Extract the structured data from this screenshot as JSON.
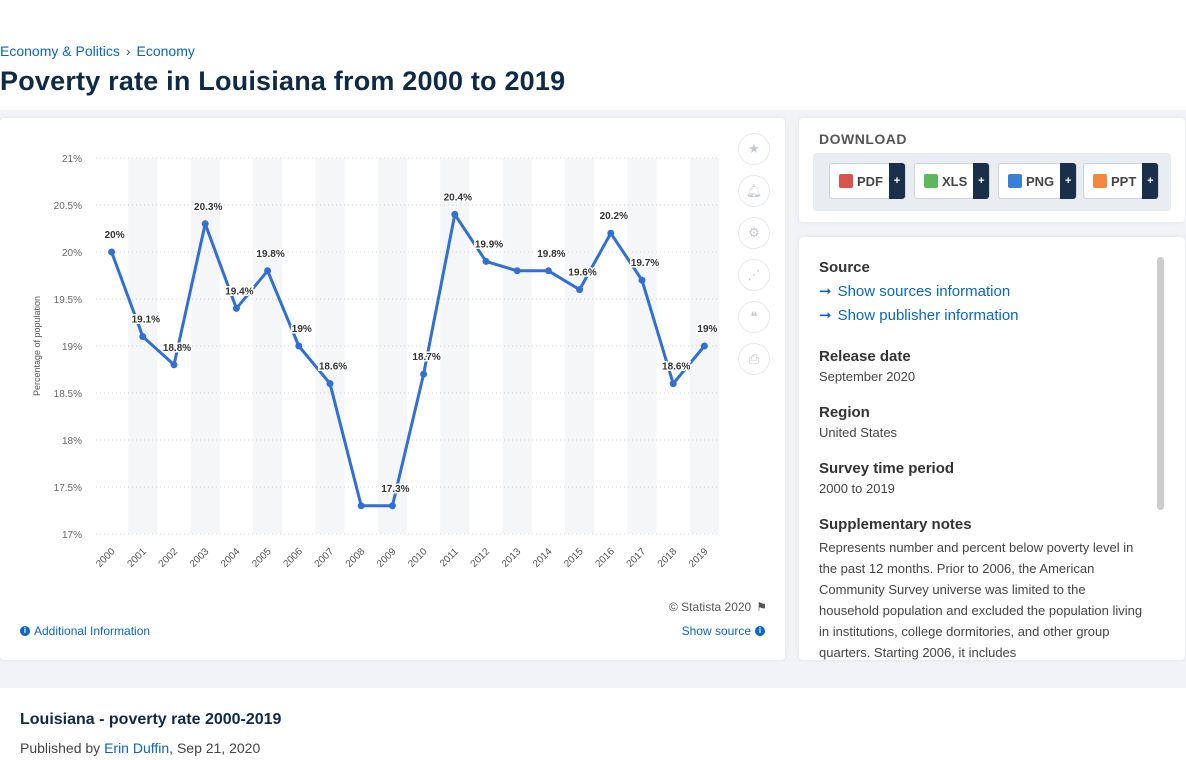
{
  "breadcrumb": {
    "items": [
      "Economy & Politics",
      "Economy"
    ],
    "separator": "›"
  },
  "page_title": "Poverty rate in Louisiana from 2000 to 2019",
  "chart": {
    "copyright": "© Statista 2020",
    "additional_info": "Additional Information",
    "show_source": "Show source",
    "colors": {
      "line": "#2f6fd6",
      "band": "#f5f6f8",
      "grid": "#cfd6de"
    }
  },
  "chart_data": {
    "type": "line",
    "x": [
      "2000",
      "2001",
      "2002",
      "2003",
      "2004",
      "2005",
      "2006",
      "2007",
      "2008",
      "2009",
      "2010",
      "2011",
      "2012",
      "2013",
      "2014",
      "2015",
      "2016",
      "2017",
      "2018",
      "2019"
    ],
    "y": [
      20,
      19.1,
      18.8,
      20.3,
      19.4,
      19.8,
      19,
      18.6,
      17.3,
      17.3,
      18.7,
      20.4,
      19.9,
      19.8,
      19.8,
      19.6,
      20.2,
      19.7,
      18.6,
      19
    ],
    "data_labels": [
      "20%",
      "19.1%",
      "18.8%",
      "20.3%",
      "19.4%",
      "19.8%",
      "19%",
      "18.6%",
      "",
      "17.3%",
      "18.7%",
      "20.4%",
      "19.9%",
      "",
      "19.8%",
      "19.6%",
      "20.2%",
      "19.7%",
      "18.6%",
      "19%"
    ],
    "ylabel": "Percentage of population",
    "xlabel": "",
    "ylim": [
      17,
      21
    ],
    "yticks": [
      17,
      17.5,
      18,
      18.5,
      19,
      19.5,
      20,
      20.5,
      21
    ],
    "ytick_labels": [
      "17%",
      "17.5%",
      "18%",
      "18.5%",
      "19%",
      "19.5%",
      "20%",
      "20.5%",
      "21%"
    ],
    "grid": true
  },
  "tools": [
    "star-icon",
    "bell-icon",
    "gear-icon",
    "share-icon",
    "quote-icon",
    "print-icon"
  ],
  "download": {
    "title": "DOWNLOAD",
    "buttons": [
      {
        "label": "PDF",
        "color": "#d9534f"
      },
      {
        "label": "XLS",
        "color": "#5cb85c"
      },
      {
        "label": "PNG",
        "color": "#3b7dd8"
      },
      {
        "label": "PPT",
        "color": "#f0883e"
      }
    ],
    "plus": "+"
  },
  "info": {
    "source_heading": "Source",
    "show_sources": "Show sources information",
    "show_publisher": "Show publisher information",
    "release_heading": "Release date",
    "release_value": "September 2020",
    "region_heading": "Region",
    "region_value": "United States",
    "period_heading": "Survey time period",
    "period_value": "2000 to 2019",
    "notes_heading": "Supplementary notes",
    "notes_value": "Represents number and percent below poverty level in the past 12 months. Prior to 2006, the American Community Survey universe was limited to the household population and excluded the population living in institutions, college dormitories, and other group quarters. Starting 2006, it includes"
  },
  "bottom": {
    "title": "Louisiana - poverty rate 2000-2019",
    "published_prefix": "Published by",
    "author": "Erin Duffin",
    "date": ", Sep 21, 2020"
  }
}
